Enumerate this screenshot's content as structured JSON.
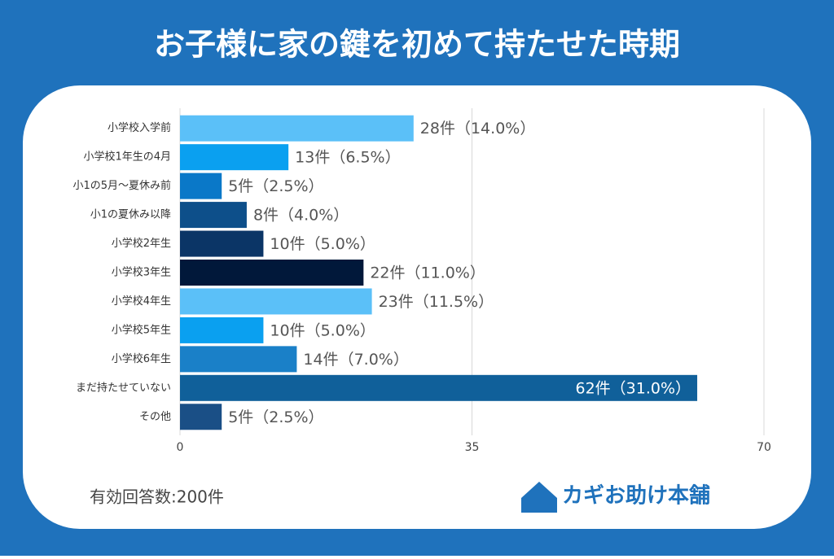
{
  "chart_data": {
    "type": "bar",
    "orientation": "horizontal",
    "title": "お子様に家の鍵を初めて持たせた時期",
    "categories": [
      "小学校入学前",
      "小学校1年生の4月",
      "小1の5月〜夏休み前",
      "小1の夏休み以降",
      "小学校2年生",
      "小学校3年生",
      "小学校4年生",
      "小学校5年生",
      "小学校6年生",
      "まだ持たせていない",
      "その他"
    ],
    "values": [
      28,
      13,
      5,
      8,
      10,
      22,
      23,
      10,
      14,
      62,
      5
    ],
    "value_labels": [
      "28件（14.0%）",
      "13件（6.5%）",
      "5件（2.5%）",
      "8件（4.0%）",
      "10件（5.0%）",
      "22件（11.0%）",
      "23件（11.5%）",
      "10件（5.0%）",
      "14件（7.0%）",
      "62件（31.0%）",
      "5件（2.5%）"
    ],
    "colors": [
      "#5bc0f8",
      "#0aa0f0",
      "#0a78c8",
      "#0d4f8a",
      "#0b3566",
      "#01183a",
      "#5bc0f8",
      "#0aa0f0",
      "#1a80c8",
      "#10609a",
      "#1a4f86"
    ],
    "xlim": [
      0,
      70
    ],
    "xticks": [
      0,
      35,
      70
    ],
    "grid": true,
    "note": "有効回答数:200件",
    "logo": "カギお助け本舗"
  }
}
